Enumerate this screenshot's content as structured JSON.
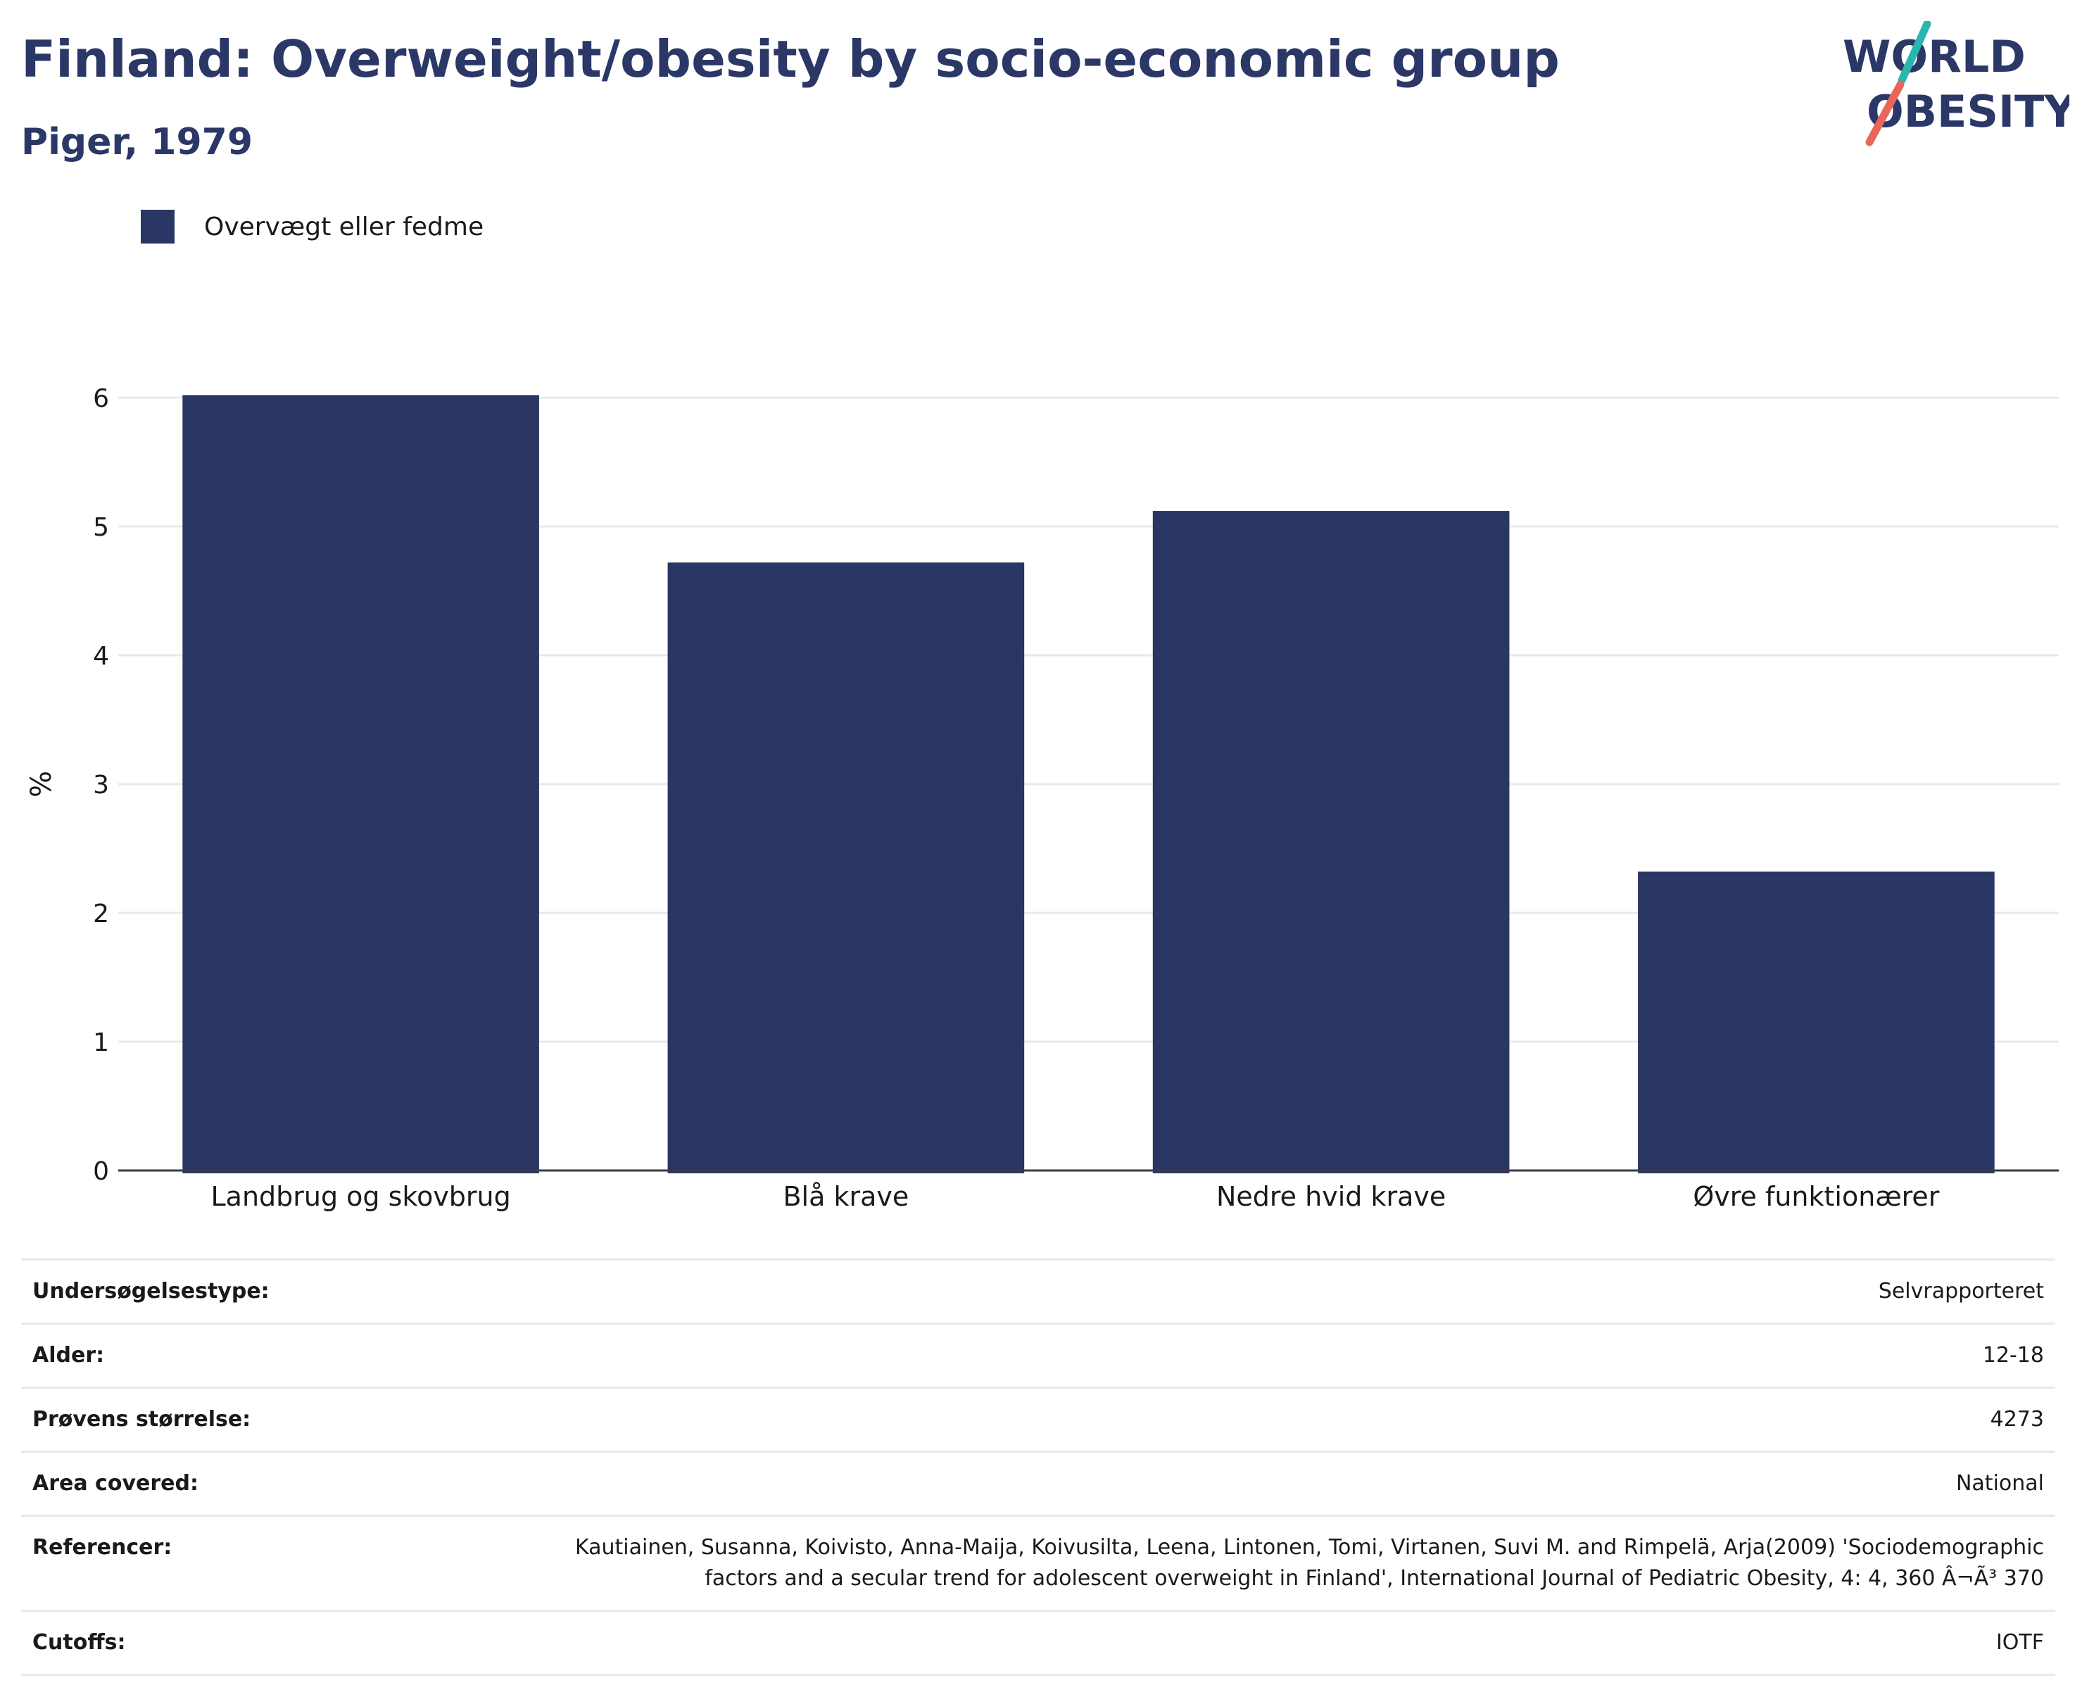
{
  "header": {
    "title": "Finland: Overweight/obesity by socio-economic group",
    "subtitle": "Piger, 1979"
  },
  "logo": {
    "line1": "WORLD",
    "line2": "OBESITY",
    "colors": {
      "text": "#2b3766",
      "slash_top": "#2bb5b0",
      "slash_bottom": "#e8675a"
    }
  },
  "legend": {
    "label": "Overvægt eller fedme",
    "color": "#2a3663"
  },
  "chart_data": {
    "type": "bar",
    "categories": [
      "Landbrug og skovbrug",
      "Blå krave",
      "Nedre hvid krave",
      "Øvre funktionærer"
    ],
    "series": [
      {
        "name": "Overvægt eller fedme",
        "values": [
          6.02,
          4.72,
          5.12,
          2.32
        ],
        "color": "#2a3663"
      }
    ],
    "ylabel": "%",
    "xlabel": "",
    "ylim": [
      0,
      6
    ],
    "yticks": [
      0,
      1,
      2,
      3,
      4,
      5,
      6
    ],
    "grid": true,
    "legend_position": "top-left"
  },
  "info": [
    {
      "key": "Undersøgelsestype:",
      "value": "Selvrapporteret"
    },
    {
      "key": "Alder:",
      "value": "12-18"
    },
    {
      "key": "Prøvens størrelse:",
      "value": "4273"
    },
    {
      "key": "Area covered:",
      "value": "National"
    },
    {
      "key": "Referencer:",
      "value": "Kautiainen, Susanna, Koivisto, Anna-Maija, Koivusilta, Leena, Lintonen, Tomi, Virtanen, Suvi M. and Rimpelä, Arja(2009) 'Sociodemographic factors and a secular trend for adolescent overweight in Finland', International Journal of Pediatric Obesity, 4: 4, 360 Â¬Ã³ 370"
    },
    {
      "key": "Cutoffs:",
      "value": "IOTF"
    }
  ]
}
